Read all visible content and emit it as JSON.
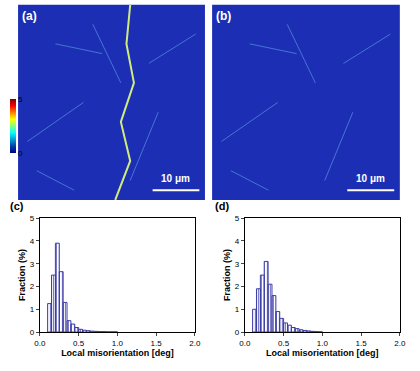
{
  "chart_data": [
    {
      "type": "map",
      "label": "(a)",
      "scale_bar": "10 μm",
      "colorbar": {
        "range": [
          0,
          5
        ],
        "ticks": [
          0,
          5
        ]
      }
    },
    {
      "type": "map",
      "label": "(b)",
      "scale_bar": "10 μm"
    },
    {
      "type": "histogram",
      "label": "(c)",
      "x_label": "Local misorientation [deg]",
      "y_label": "Fraction (%)",
      "bins": [
        0.1,
        0.15,
        0.2,
        0.25,
        0.3,
        0.35,
        0.4,
        0.45,
        0.5,
        0.55,
        0.6,
        0.65,
        0.7,
        0.75,
        0.8,
        0.85,
        0.9,
        0.95,
        1.0
      ],
      "values": [
        1.25,
        2.5,
        3.9,
        2.65,
        1.3,
        0.5,
        0.35,
        0.2,
        0.12,
        0.08,
        0.06,
        0.04,
        0.03,
        0.02,
        0.02,
        0.01,
        0.01,
        0.01
      ],
      "color": "#3c3ca8",
      "xlim": [
        0,
        2
      ],
      "xticks": [
        {
          "value": 0,
          "label": "0.0"
        },
        {
          "value": 0.5,
          "label": "0.5"
        },
        {
          "value": 1,
          "label": "1.0"
        },
        {
          "value": 1.5,
          "label": "1.5"
        },
        {
          "value": 2,
          "label": "2.0"
        }
      ],
      "ylim": [
        0,
        5
      ],
      "yticks": [
        0,
        1,
        2,
        3,
        4,
        5
      ],
      "grid": false
    },
    {
      "type": "histogram",
      "label": "(d)",
      "x_label": "Local misorientation [deg]",
      "y_label": "Fraction (%)",
      "bins": [
        0.1,
        0.15,
        0.2,
        0.25,
        0.3,
        0.35,
        0.4,
        0.45,
        0.5,
        0.55,
        0.6,
        0.65,
        0.7,
        0.75,
        0.8,
        0.85,
        0.9,
        0.95,
        1.0
      ],
      "values": [
        1.0,
        1.9,
        2.5,
        3.1,
        2.1,
        1.6,
        0.9,
        0.6,
        0.4,
        0.3,
        0.2,
        0.15,
        0.1,
        0.07,
        0.05,
        0.03,
        0.02,
        0.01
      ],
      "color": "#3c3ca8",
      "xlim": [
        0,
        2
      ],
      "xticks": [
        {
          "value": 0,
          "label": "0.0"
        },
        {
          "value": 0.5,
          "label": "0.5"
        },
        {
          "value": 1,
          "label": "1.0"
        },
        {
          "value": 1.5,
          "label": "1.5"
        },
        {
          "value": 2,
          "label": "2.0"
        }
      ],
      "ylim": [
        0,
        5
      ],
      "yticks": [
        0,
        1,
        2,
        3,
        4,
        5
      ],
      "grid": false
    }
  ]
}
